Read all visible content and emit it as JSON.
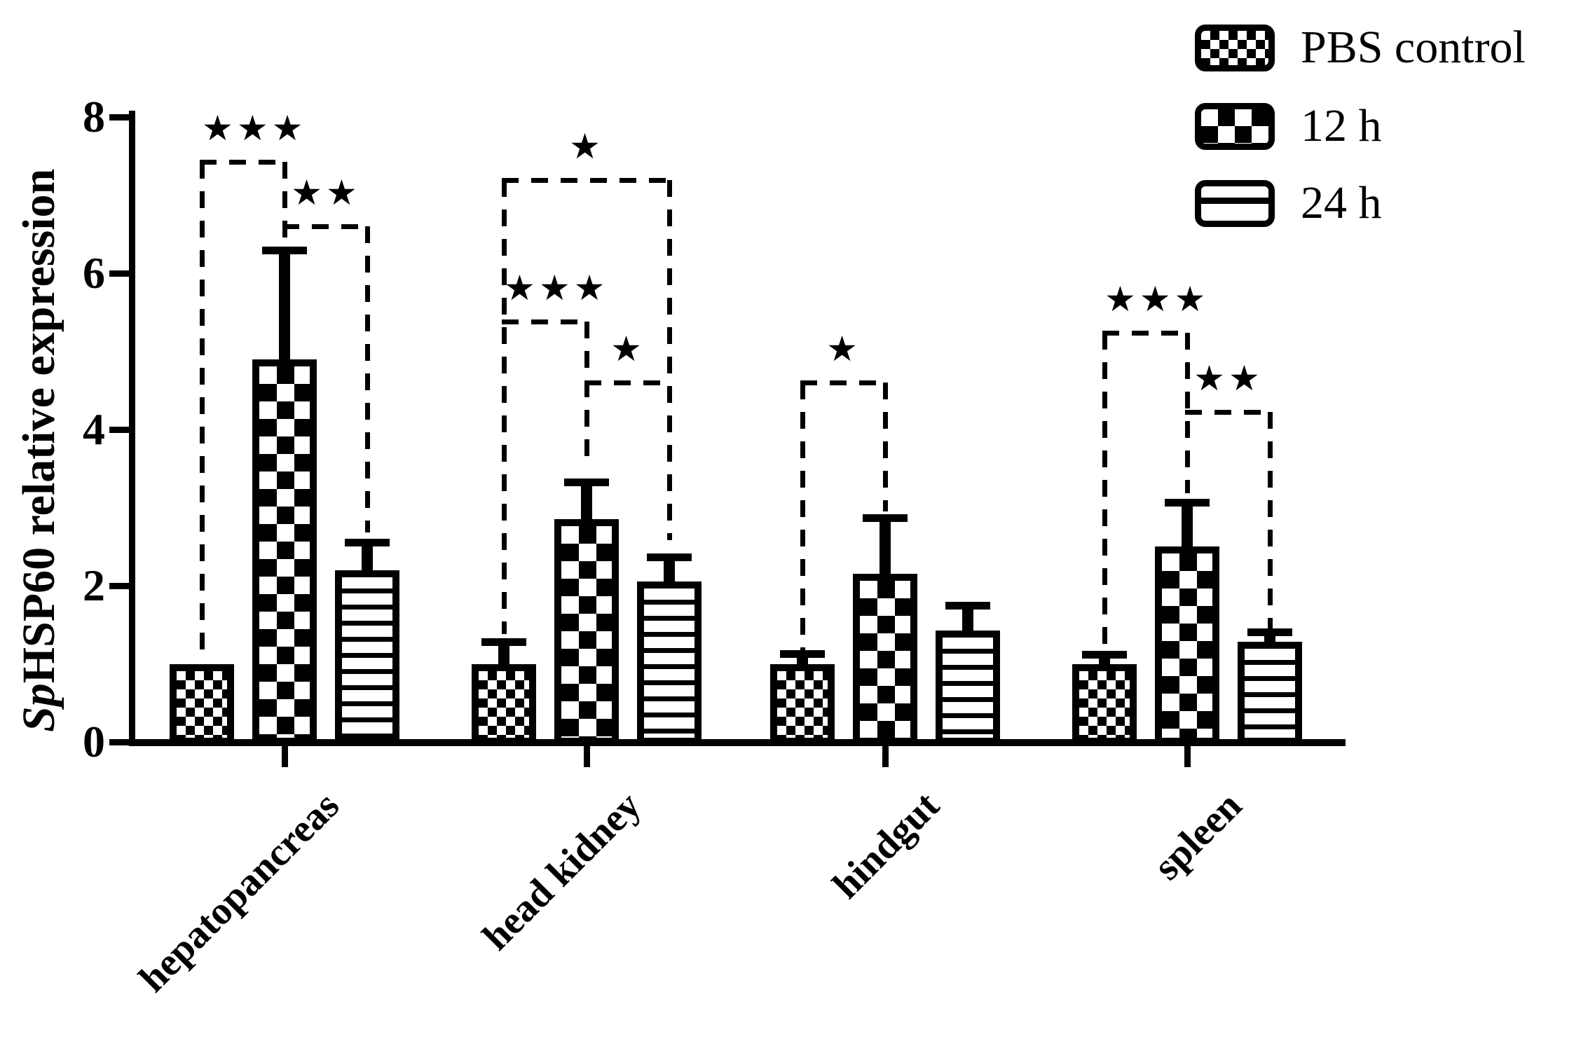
{
  "figure": {
    "background": "#ffffff",
    "ink_color": "#000000"
  },
  "y_axis": {
    "title_italic_prefix": "Sp",
    "title_rest": "HSP60 relative expression",
    "tick_labels": [
      "0",
      "2",
      "4",
      "6",
      "8"
    ]
  },
  "legend": {
    "items": [
      {
        "label": "PBS control",
        "pattern": "fine-checkerboard"
      },
      {
        "label": "12 h",
        "pattern": "coarse-checkerboard"
      },
      {
        "label": "24 h",
        "pattern": "horizontal-stripes"
      }
    ]
  },
  "chart_data": {
    "type": "bar",
    "title": "",
    "xlabel": "",
    "ylabel": "SpHSP60 relative expression",
    "ylim": [
      0,
      8
    ],
    "yticks": [
      0,
      2,
      4,
      6,
      8
    ],
    "grid": false,
    "legend_position": "top-right",
    "categories": [
      "hepatopancreas",
      "head kidney",
      "hindgut",
      "spleen"
    ],
    "series": [
      {
        "name": "PBS control",
        "pattern": "fine-checkerboard",
        "values": [
          1.0,
          1.0,
          1.0,
          1.0
        ],
        "errors_plus": [
          0,
          0.28,
          0.13,
          0.12
        ]
      },
      {
        "name": "12 h",
        "pattern": "coarse-checkerboard",
        "values": [
          4.9,
          2.85,
          2.15,
          2.5
        ],
        "errors_plus": [
          1.4,
          0.48,
          0.72,
          0.57
        ]
      },
      {
        "name": "24 h",
        "pattern": "horizontal-stripes",
        "values": [
          2.2,
          2.05,
          1.43,
          1.28
        ],
        "errors_plus": [
          0.36,
          0.32,
          0.32,
          0.13
        ]
      }
    ],
    "significance": [
      {
        "category": "hepatopancreas",
        "between": [
          0,
          1
        ],
        "stars": "***",
        "height": 7.43,
        "drop_left": 1.16,
        "drop_right": 6.42
      },
      {
        "category": "hepatopancreas",
        "between": [
          1,
          2
        ],
        "stars": "**",
        "height": 6.6,
        "drop_left": null,
        "drop_right": 2.68
      },
      {
        "category": "head kidney",
        "between": [
          0,
          2
        ],
        "stars": "*",
        "height": 7.19,
        "drop_left": 1.38,
        "drop_right": 2.58
      },
      {
        "category": "head kidney",
        "between": [
          0,
          1
        ],
        "stars": "***",
        "height": 5.38,
        "drop_left": null,
        "drop_right": 3.5
      },
      {
        "category": "head kidney",
        "between": [
          1,
          2
        ],
        "stars": "*",
        "height": 4.6,
        "drop_left": null,
        "drop_right": null
      },
      {
        "category": "hindgut",
        "between": [
          0,
          1
        ],
        "stars": "*",
        "height": 4.6,
        "drop_left": 1.17,
        "drop_right": 2.95
      },
      {
        "category": "spleen",
        "between": [
          0,
          1
        ],
        "stars": "***",
        "height": 5.24,
        "drop_left": 1.25,
        "drop_right": 3.18
      },
      {
        "category": "spleen",
        "between": [
          1,
          2
        ],
        "stars": "**",
        "height": 4.22,
        "drop_left": null,
        "drop_right": 1.45
      }
    ]
  }
}
